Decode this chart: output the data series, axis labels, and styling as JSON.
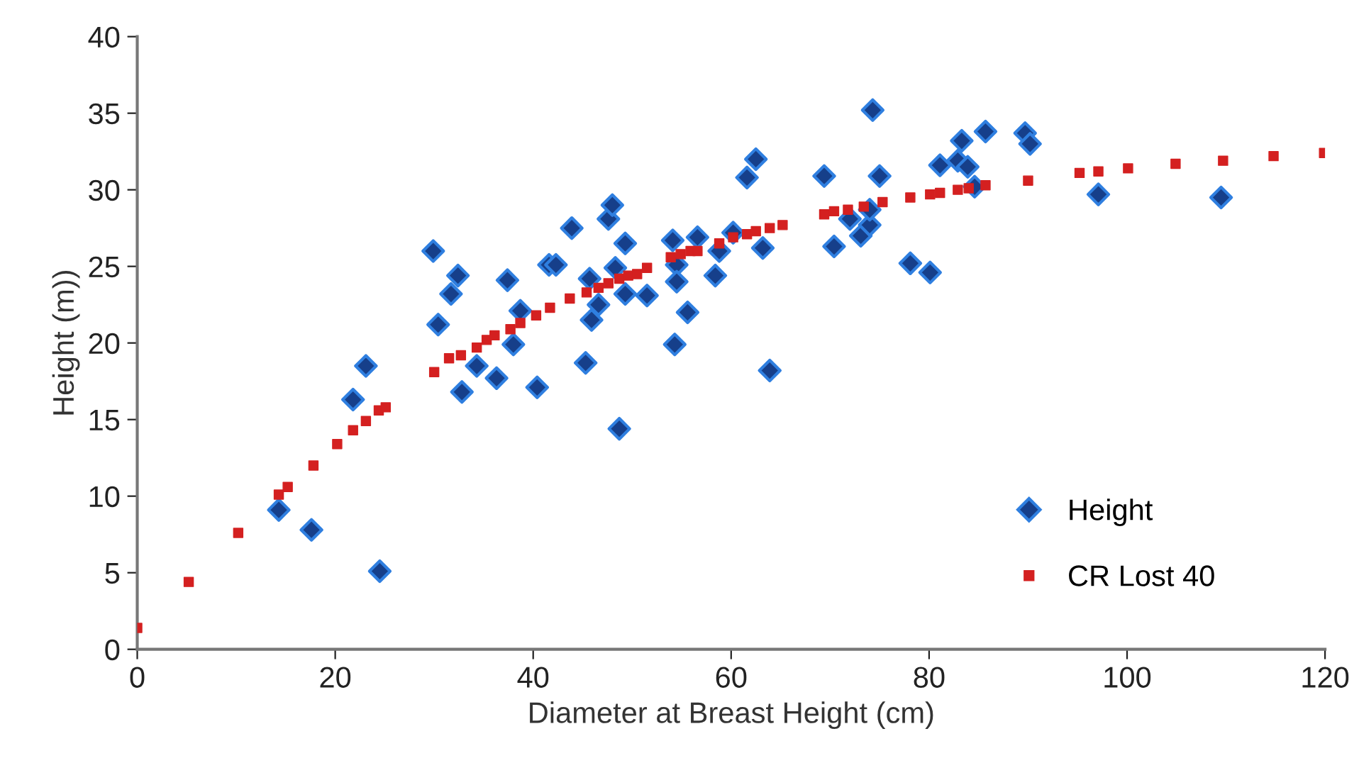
{
  "chart_data": {
    "type": "scatter",
    "xlabel": "Diameter at Breast Height (cm)",
    "ylabel": "Height (m))",
    "xlim": [
      0,
      120
    ],
    "xticks": [
      0,
      20,
      40,
      60,
      80,
      100,
      120
    ],
    "ylim": [
      0,
      40
    ],
    "yticks": [
      0,
      5,
      10,
      15,
      20,
      25,
      30,
      35,
      40
    ],
    "grid": false,
    "legend": "bottom right",
    "series": [
      {
        "name": "Height",
        "color": "#163f8a",
        "marker": "diamond",
        "x": [
          14.3,
          17.6,
          21.8,
          23.1,
          24.5,
          29.9,
          30.4,
          31.7,
          32.4,
          32.8,
          34.3,
          36.3,
          37.4,
          38.0,
          38.7,
          40.4,
          41.6,
          42.3,
          43.9,
          45.3,
          45.7,
          46.6,
          45.9,
          47.6,
          48.0,
          48.3,
          48.7,
          49.3,
          49.3,
          51.5,
          54.1,
          54.5,
          54.5,
          54.3,
          55.6,
          56.6,
          58.4,
          58.8,
          60.2,
          61.6,
          62.5,
          63.2,
          63.9,
          69.4,
          70.4,
          72.0,
          73.1,
          74.0,
          74.0,
          74.3,
          75.0,
          78.1,
          80.1,
          81.1,
          82.9,
          83.3,
          83.9,
          84.6,
          85.7,
          89.7,
          90.2,
          97.1,
          109.5
        ],
        "values": [
          9.1,
          7.8,
          16.3,
          18.5,
          5.1,
          26.0,
          21.2,
          23.2,
          24.4,
          16.8,
          18.5,
          17.7,
          24.1,
          19.9,
          22.1,
          17.1,
          25.1,
          25.1,
          27.5,
          18.7,
          24.2,
          22.5,
          21.5,
          28.1,
          29.0,
          24.9,
          14.4,
          26.5,
          23.2,
          23.1,
          26.7,
          25.1,
          24.0,
          19.9,
          22.0,
          26.9,
          24.4,
          26.0,
          27.2,
          30.8,
          32.0,
          26.2,
          18.2,
          30.9,
          26.3,
          28.1,
          27.0,
          27.7,
          28.7,
          35.2,
          30.9,
          25.2,
          24.6,
          31.6,
          31.9,
          33.2,
          31.5,
          30.2,
          33.8,
          33.7,
          33.0,
          29.7,
          29.5
        ]
      },
      {
        "name": "CR Lost 40",
        "color": "#d42020",
        "marker": "square",
        "x": [
          0,
          5.2,
          10.2,
          14.3,
          15.2,
          17.8,
          20.2,
          21.8,
          23.1,
          24.4,
          25.1,
          30.0,
          31.5,
          32.7,
          34.3,
          35.3,
          36.1,
          37.7,
          38.7,
          40.3,
          41.7,
          43.7,
          45.4,
          46.6,
          47.6,
          48.7,
          49.6,
          50.5,
          51.5,
          53.9,
          54.9,
          55.9,
          56.6,
          58.8,
          60.2,
          61.6,
          62.5,
          63.9,
          65.2,
          69.4,
          70.4,
          71.8,
          73.4,
          75.3,
          78.1,
          80.1,
          81.1,
          82.9,
          84.0,
          85.7,
          90.0,
          95.2,
          97.1,
          100.1,
          104.9,
          109.7,
          114.8,
          119.9
        ],
        "values": [
          1.4,
          4.4,
          7.6,
          10.1,
          10.6,
          12.0,
          13.4,
          14.3,
          14.9,
          15.6,
          15.8,
          18.1,
          19.0,
          19.2,
          19.7,
          20.2,
          20.5,
          20.9,
          21.3,
          21.8,
          22.3,
          22.9,
          23.3,
          23.6,
          23.9,
          24.2,
          24.4,
          24.5,
          24.9,
          25.6,
          25.8,
          26.0,
          26.0,
          26.5,
          26.9,
          27.1,
          27.3,
          27.5,
          27.7,
          28.4,
          28.6,
          28.7,
          28.9,
          29.2,
          29.5,
          29.7,
          29.8,
          30.0,
          30.1,
          30.3,
          30.6,
          31.1,
          31.2,
          31.4,
          31.7,
          31.9,
          32.2,
          32.4
        ]
      }
    ]
  }
}
